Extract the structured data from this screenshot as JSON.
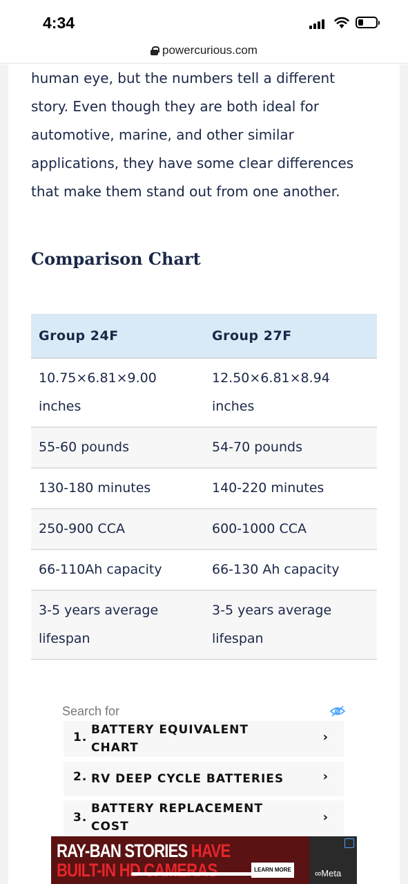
{
  "status_bar": {
    "time": "4:34"
  },
  "browser": {
    "url": "powercurious.com"
  },
  "article": {
    "lines": [
      "human eye, but the numbers tell a different",
      "story. Even though they are both ideal for",
      "automotive, marine, and other similar",
      "applications, they have some clear differences",
      "that make them stand out from one another."
    ],
    "section_heading": "Comparison Chart"
  },
  "table": {
    "headers": [
      "Group 24F",
      "Group 27F"
    ],
    "rows": [
      [
        "10.75×6.81×9.00\ninches",
        "12.50×6.81×8.94\ninches"
      ],
      [
        "55-60 pounds",
        "54-70 pounds"
      ],
      [
        "130-180 minutes",
        "140-220 minutes"
      ],
      [
        "250-900 CCA",
        "600-1000 CCA"
      ],
      [
        "66-110Ah capacity",
        "66-130 Ah capacity"
      ],
      [
        "3-5 years average\nlifespan",
        "3-5 years average\nlifespan"
      ]
    ]
  },
  "search": {
    "label": "Search for",
    "items": [
      {
        "num": "1.",
        "label": "BATTERY EQUIVALENT\nCHART"
      },
      {
        "num": "2.",
        "label": "RV DEEP CYCLE BATTERIES"
      },
      {
        "num": "3.",
        "label": "BATTERY REPLACEMENT\nCOST"
      }
    ],
    "chevron": "›"
  },
  "ad": {
    "line1_white": "RAY-BAN STORIES ",
    "line1_red": "HAVE",
    "line2": "BUILT-IN HD CAMERAS",
    "cta": "LEARN MORE",
    "brand": "∞Meta"
  }
}
